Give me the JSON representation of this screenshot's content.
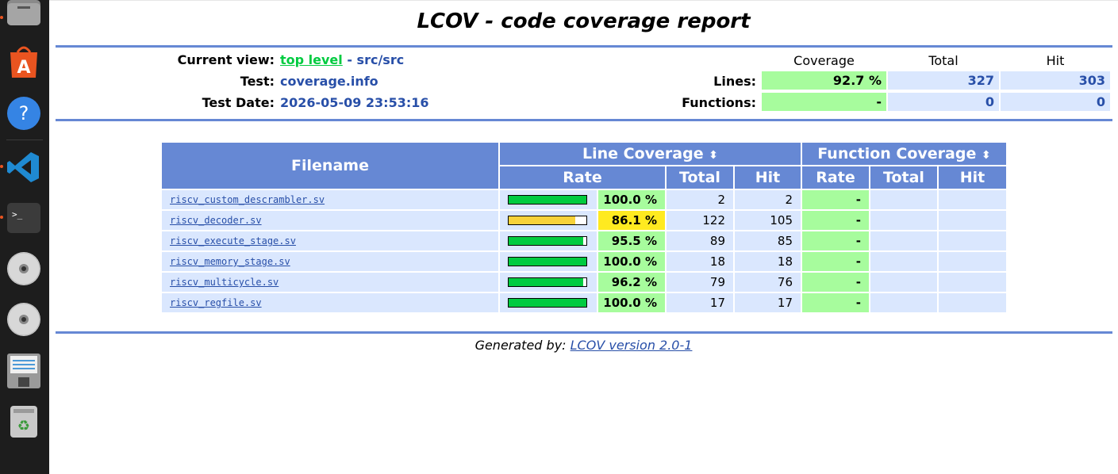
{
  "dock": {
    "items": [
      {
        "name": "files-icon"
      },
      {
        "name": "app-center-icon"
      },
      {
        "name": "help-icon"
      },
      {
        "name": "vscode-icon"
      },
      {
        "name": "terminal-icon"
      },
      {
        "name": "disc-icon"
      },
      {
        "name": "disc-icon-2"
      },
      {
        "name": "save-disk-icon"
      },
      {
        "name": "trash-icon"
      }
    ]
  },
  "report": {
    "title": "LCOV - code coverage report",
    "current_view_label": "Current view:",
    "current_view_link": "top level",
    "current_view_sep": " - ",
    "current_view_path": "src/src",
    "test_label": "Test:",
    "test_value": "coverage.info",
    "date_label": "Test Date:",
    "date_value": "2026-05-09 23:53:16",
    "summary": {
      "col_coverage": "Coverage",
      "col_total": "Total",
      "col_hit": "Hit",
      "lines_label": "Lines:",
      "lines_coverage": "92.7 %",
      "lines_total": "327",
      "lines_hit": "303",
      "functions_label": "Functions:",
      "functions_coverage": "-",
      "functions_total": "0",
      "functions_hit": "0"
    }
  },
  "table": {
    "filename_header": "Filename",
    "line_cov_header": "Line Coverage",
    "func_cov_header": "Function Coverage",
    "sort_icon": "⬍",
    "sub_rate": "Rate",
    "sub_total": "Total",
    "sub_hit": "Hit",
    "rows": [
      {
        "file": "riscv_custom_descrambler.sv",
        "pct": 100.0,
        "rate": "100.0 %",
        "total": "2",
        "hit": "2",
        "func_rate": "-"
      },
      {
        "file": "riscv_decoder.sv",
        "pct": 86.1,
        "rate": "86.1 %",
        "total": "122",
        "hit": "105",
        "func_rate": "-"
      },
      {
        "file": "riscv_execute_stage.sv",
        "pct": 95.5,
        "rate": "95.5 %",
        "total": "89",
        "hit": "85",
        "func_rate": "-"
      },
      {
        "file": "riscv_memory_stage.sv",
        "pct": 100.0,
        "rate": "100.0 %",
        "total": "18",
        "hit": "18",
        "func_rate": "-"
      },
      {
        "file": "riscv_multicycle.sv",
        "pct": 96.2,
        "rate": "96.2 %",
        "total": "79",
        "hit": "76",
        "func_rate": "-"
      },
      {
        "file": "riscv_regfile.sv",
        "pct": 100.0,
        "rate": "100.0 %",
        "total": "17",
        "hit": "17",
        "func_rate": "-"
      }
    ]
  },
  "colors": {
    "header_blue": "#6688d4",
    "cell_blue": "#dae7fe",
    "hi_green": "#a7fc9d",
    "med_yellow": "#ffea20",
    "bar_green": "#00cb40",
    "bar_yellow": "#f7d23a"
  },
  "footer": {
    "prefix": "Generated by: ",
    "link": "LCOV version 2.0-1"
  }
}
